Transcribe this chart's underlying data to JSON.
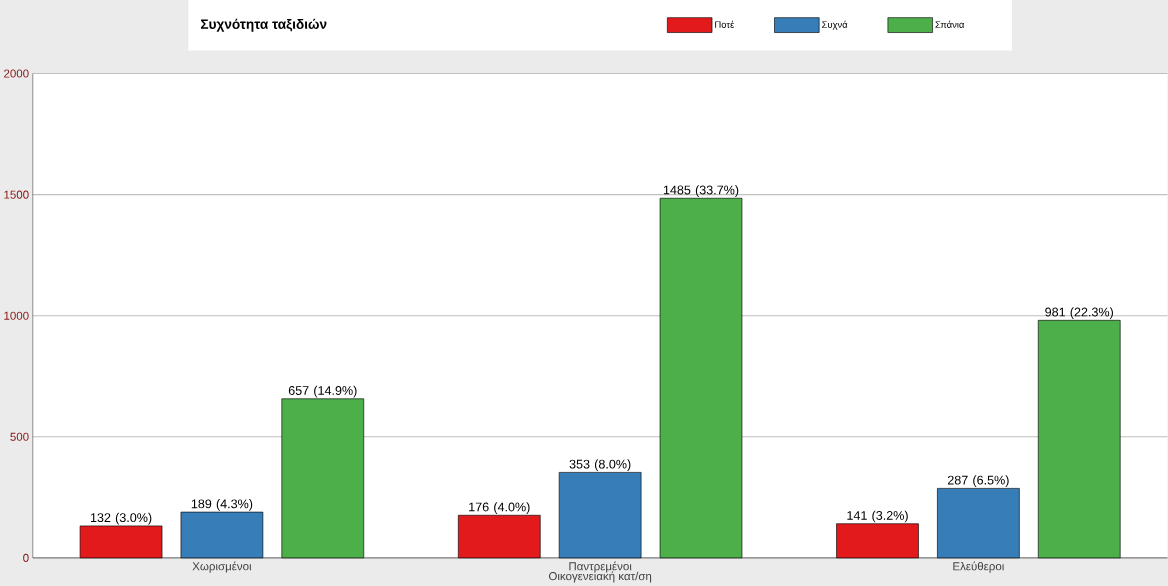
{
  "chart_data": {
    "type": "bar",
    "title": "Συχνότητα ταξιδιών",
    "xlabel": "Οικογενειακή κατ/ση",
    "categories": [
      "Χωρισμένοι",
      "Παντρεμένοι",
      "Ελεύθεροι"
    ],
    "series": [
      {
        "name": "Ποτέ",
        "color": "#e31a1c",
        "values": [
          132,
          176,
          141
        ],
        "value_labels": [
          "132 (3.0%)",
          "176 (4.0%)",
          "141 (3.2%)"
        ]
      },
      {
        "name": "Συχνά",
        "color": "#377eb8",
        "values": [
          189,
          353,
          287
        ],
        "value_labels": [
          "189 (4.3%)",
          "353 (8.0%)",
          "287 (6.5%)"
        ]
      },
      {
        "name": "Σπάνια",
        "color": "#4daf4a",
        "values": [
          657,
          1485,
          981
        ],
        "value_labels": [
          "657 (14.9%)",
          "1485 (33.7%)",
          "981 (22.3%)"
        ]
      }
    ],
    "ylim": [
      0,
      2000
    ],
    "yticks": [
      0,
      500,
      1000,
      1500,
      2000
    ],
    "grid": "y",
    "legend": "top"
  }
}
